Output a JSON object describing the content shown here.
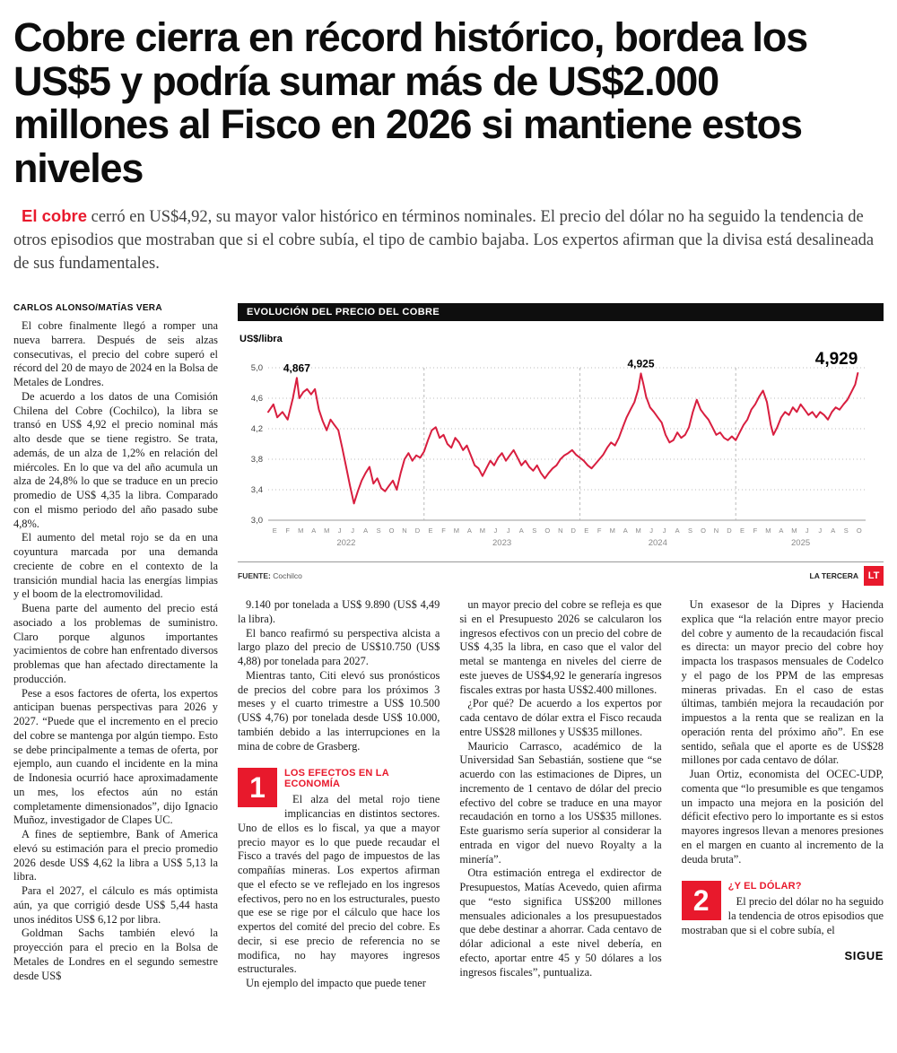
{
  "colors": {
    "accent_red": "#e8192c",
    "chart_line": "#d81e3f"
  },
  "article": {
    "headline": "Cobre cierra en récord histórico, bordea los US$5 y podría sumar más de US$2.000 millones al Fisco en 2026 si mantiene estos niveles",
    "lede_highlight": "El cobre",
    "lede_rest": " cerró en US$4,92, su mayor valor histórico en términos nominales. El precio del dólar no ha seguido la tendencia de otros episodios que mostraban que si el cobre subía, el tipo de cambio bajaba. Los expertos afirman que la divisa está desalineada de sus fundamentales.",
    "byline": "CARLOS ALONSO/MATÍAS VERA",
    "continues_label": "SIGUE",
    "columns": {
      "col1": [
        "El cobre finalmente llegó a romper una nueva barrera. Después de seis alzas consecutivas, el precio del cobre superó el récord del 20 de mayo de 2024 en la Bolsa de Metales de Londres.",
        "De acuerdo a los datos de una Comisión Chilena del Cobre (Cochilco), la libra se transó en US$ 4,92 el precio nominal más alto desde que se tiene registro. Se trata, además, de un alza de 1,2% en relación del miércoles. En lo que va del año acumula un alza de 24,8% lo que se traduce en un precio promedio de US$ 4,35 la libra. Comparado con el mismo periodo del año pasado sube 4,8%.",
        "El aumento del metal rojo se da en una coyuntura marcada por una demanda creciente de cobre en el contexto de la transición mundial hacia las energías limpias y el boom de la electromovilidad.",
        "Buena parte del aumento del precio está asociado a los problemas de suministro. Claro porque algunos importantes yacimientos de cobre han enfrentado diversos problemas que han afectado directamente la producción.",
        "Pese a esos factores de oferta, los expertos anticipan buenas perspectivas para 2026 y 2027. “Puede que el incremento en el precio del cobre se mantenga por algún tiempo. Esto se debe principalmente a temas de oferta, por ejemplo, aun cuando el incidente en la mina de Indonesia ocurrió hace aproximadamente un mes, los efectos aún no están completamente dimensionados”, dijo Ignacio Muñoz, investigador de Clapes UC.",
        "A fines de septiembre, Bank of America elevó su estimación para el precio promedio 2026 desde US$ 4,62 la libra a US$ 5,13 la libra.",
        "Para el 2027, el cálculo es más optimista aún, ya que corrigió desde US$ 5,44 hasta unos inéditos US$ 6,12 por libra.",
        "Goldman Sachs también elevó la proyección para el precio en la Bolsa de Metales de Londres en el segundo semestre desde US$"
      ],
      "col2_intro": [
        "9.140 por tonelada a US$ 9.890 (US$ 4,49 la libra).",
        "El banco reafirmó su perspectiva alcista a largo plazo del precio de US$10.750 (US$ 4,88) por tonelada para 2027.",
        "Mientras tanto, Citi elevó sus pronósticos de precios del cobre para los próximos 3 meses y el cuarto trimestre a US$ 10.500 (US$ 4,76) por tonelada desde US$ 10.000, también debido a las interrupciones en la mina de cobre de Grasberg."
      ],
      "section1": {
        "number": "1",
        "title": "LOS EFECTOS EN LA ECONOMÍA",
        "paragraphs": [
          "El alza del metal rojo tiene implicancias en distintos sectores. Uno de ellos es lo fiscal, ya que a mayor precio mayor es lo que puede recaudar el Fisco a través del pago de impuestos de las compañías mineras. Los expertos afirman que el efecto se ve reflejado en los ingresos efectivos, pero no en los estructurales, puesto que ese se rige por el cálculo que hace los expertos del comité del precio del cobre. Es decir, si ese precio de referencia no se modifica, no hay mayores ingresos estructurales.",
          "Un ejemplo del impacto que puede tener"
        ]
      },
      "col3": [
        "un mayor precio del cobre se refleja es que si en el Presupuesto 2026 se calcularon los ingresos efectivos con un precio del cobre de US$ 4,35 la libra, en caso que el valor del metal se mantenga en niveles del cierre de este jueves de US$4,92 le generaría ingresos fiscales extras por hasta US$2.400 millones.",
        "¿Por qué? De acuerdo a los expertos por cada centavo de dólar extra el Fisco recauda entre US$28 millones y US$35 millones.",
        "Mauricio Carrasco, académico de la Universidad San Sebastián, sostiene que “se acuerdo con las estimaciones de Dipres, un incremento de 1 centavo de dólar del precio efectivo del cobre se traduce en una mayor recaudación en torno a los US$35 millones. Este guarismo sería superior al considerar la entrada en vigor del nuevo Royalty a la minería”.",
        "Otra estimación entrega el exdirector de Presupuestos, Matías Acevedo, quien afirma que “esto significa US$200 millones mensuales adicionales a los presupuestados que debe destinar a ahorrar. Cada centavo de dólar adicional a este nivel debería, en efecto, aportar entre 45 y 50 dólares a los ingresos fiscales”, puntualiza."
      ],
      "col4_intro": [
        "Un exasesor de la Dipres y Hacienda explica que “la relación entre mayor precio del cobre y aumento de la recaudación fiscal es directa: un mayor precio del cobre hoy impacta los traspasos mensuales de Codelco y el pago de los PPM de las empresas mineras privadas. En el caso de estas últimas, también mejora la recaudación por impuestos a la renta que se realizan en la operación renta del próximo año”. En ese sentido, señala que el aporte es de US$28 millones por cada centavo de dólar.",
        "Juan Ortiz, economista del OCEC-UDP, comenta que “lo presumible es que tengamos un impacto una mejora en la posición del déficit efectivo pero lo importante es si estos mayores ingresos llevan a menores presiones en el margen en cuanto al incremento de la deuda bruta”."
      ],
      "section2": {
        "number": "2",
        "title": "¿Y EL DÓLAR?",
        "paragraphs": [
          "El precio del dólar no ha seguido la tendencia de otros episodios que mostraban que si el cobre subía, el"
        ]
      }
    }
  },
  "chart": {
    "header": "EVOLUCIÓN DEL PRECIO DEL COBRE",
    "unit_label": "US$/libra",
    "source_label": "FUENTE:",
    "source_value": "Cochilco",
    "credit": "LA TERCERA",
    "logo": "LT"
  },
  "chart_data": {
    "type": "line",
    "title": "EVOLUCIÓN DEL PRECIO DEL COBRE",
    "ylabel": "US$/libra",
    "ylim": [
      3.0,
      5.0
    ],
    "grid": true,
    "legend": "none",
    "yticks": [
      {
        "value": 5.0,
        "label": "5,0"
      },
      {
        "value": 4.6,
        "label": "4,6"
      },
      {
        "value": 4.2,
        "label": "4,2"
      },
      {
        "value": 3.8,
        "label": "3,8"
      },
      {
        "value": 3.4,
        "label": "3,4"
      },
      {
        "value": 3.0,
        "label": "3,0"
      }
    ],
    "month_letters": [
      "E",
      "F",
      "M",
      "A",
      "M",
      "J",
      "J",
      "A",
      "S",
      "O",
      "N",
      "D"
    ],
    "years": [
      {
        "label": "2022",
        "months": 12
      },
      {
        "label": "2023",
        "months": 12
      },
      {
        "label": "2024",
        "months": 12
      },
      {
        "label": "2025",
        "months": 10
      }
    ],
    "series": [
      {
        "name": "Precio del cobre (US$/libra)",
        "color": "#d81e3f",
        "points": [
          [
            0,
            4.42
          ],
          [
            0.4,
            4.52
          ],
          [
            0.7,
            4.35
          ],
          [
            1.1,
            4.42
          ],
          [
            1.5,
            4.32
          ],
          [
            1.9,
            4.6
          ],
          [
            2.2,
            4.867
          ],
          [
            2.4,
            4.6
          ],
          [
            2.7,
            4.68
          ],
          [
            3.0,
            4.72
          ],
          [
            3.3,
            4.65
          ],
          [
            3.6,
            4.72
          ],
          [
            3.9,
            4.45
          ],
          [
            4.2,
            4.3
          ],
          [
            4.5,
            4.18
          ],
          [
            4.8,
            4.32
          ],
          [
            5.1,
            4.25
          ],
          [
            5.4,
            4.18
          ],
          [
            5.7,
            3.95
          ],
          [
            6.0,
            3.7
          ],
          [
            6.3,
            3.45
          ],
          [
            6.6,
            3.22
          ],
          [
            6.9,
            3.38
          ],
          [
            7.2,
            3.52
          ],
          [
            7.5,
            3.62
          ],
          [
            7.8,
            3.7
          ],
          [
            8.1,
            3.48
          ],
          [
            8.4,
            3.55
          ],
          [
            8.7,
            3.42
          ],
          [
            9.0,
            3.38
          ],
          [
            9.3,
            3.45
          ],
          [
            9.6,
            3.52
          ],
          [
            9.9,
            3.4
          ],
          [
            10.2,
            3.62
          ],
          [
            10.5,
            3.8
          ],
          [
            10.8,
            3.88
          ],
          [
            11.1,
            3.78
          ],
          [
            11.4,
            3.85
          ],
          [
            11.7,
            3.82
          ],
          [
            12.0,
            3.9
          ],
          [
            12.3,
            4.05
          ],
          [
            12.6,
            4.18
          ],
          [
            12.9,
            4.22
          ],
          [
            13.2,
            4.08
          ],
          [
            13.5,
            4.12
          ],
          [
            13.8,
            4.0
          ],
          [
            14.1,
            3.95
          ],
          [
            14.4,
            4.08
          ],
          [
            14.7,
            4.02
          ],
          [
            15.0,
            3.92
          ],
          [
            15.3,
            3.98
          ],
          [
            15.6,
            3.85
          ],
          [
            15.9,
            3.72
          ],
          [
            16.2,
            3.68
          ],
          [
            16.5,
            3.58
          ],
          [
            16.8,
            3.68
          ],
          [
            17.1,
            3.78
          ],
          [
            17.4,
            3.72
          ],
          [
            17.7,
            3.82
          ],
          [
            18.0,
            3.88
          ],
          [
            18.3,
            3.78
          ],
          [
            18.6,
            3.85
          ],
          [
            18.9,
            3.92
          ],
          [
            19.2,
            3.82
          ],
          [
            19.5,
            3.72
          ],
          [
            19.8,
            3.78
          ],
          [
            20.1,
            3.7
          ],
          [
            20.4,
            3.65
          ],
          [
            20.7,
            3.72
          ],
          [
            21.0,
            3.62
          ],
          [
            21.3,
            3.55
          ],
          [
            21.6,
            3.62
          ],
          [
            21.9,
            3.68
          ],
          [
            22.2,
            3.72
          ],
          [
            22.5,
            3.8
          ],
          [
            22.8,
            3.85
          ],
          [
            23.1,
            3.88
          ],
          [
            23.4,
            3.92
          ],
          [
            23.7,
            3.86
          ],
          [
            24.0,
            3.82
          ],
          [
            24.3,
            3.78
          ],
          [
            24.6,
            3.72
          ],
          [
            24.9,
            3.68
          ],
          [
            25.2,
            3.74
          ],
          [
            25.5,
            3.8
          ],
          [
            25.8,
            3.86
          ],
          [
            26.1,
            3.95
          ],
          [
            26.4,
            4.02
          ],
          [
            26.7,
            3.98
          ],
          [
            27.0,
            4.08
          ],
          [
            27.3,
            4.22
          ],
          [
            27.6,
            4.35
          ],
          [
            27.9,
            4.45
          ],
          [
            28.2,
            4.55
          ],
          [
            28.5,
            4.72
          ],
          [
            28.7,
            4.925
          ],
          [
            28.9,
            4.78
          ],
          [
            29.1,
            4.62
          ],
          [
            29.4,
            4.48
          ],
          [
            29.7,
            4.42
          ],
          [
            30.0,
            4.35
          ],
          [
            30.3,
            4.28
          ],
          [
            30.6,
            4.12
          ],
          [
            30.9,
            4.02
          ],
          [
            31.2,
            4.05
          ],
          [
            31.5,
            4.15
          ],
          [
            31.8,
            4.08
          ],
          [
            32.1,
            4.12
          ],
          [
            32.4,
            4.22
          ],
          [
            32.7,
            4.42
          ],
          [
            33.0,
            4.58
          ],
          [
            33.3,
            4.45
          ],
          [
            33.6,
            4.38
          ],
          [
            33.9,
            4.32
          ],
          [
            34.2,
            4.22
          ],
          [
            34.5,
            4.12
          ],
          [
            34.8,
            4.15
          ],
          [
            35.1,
            4.08
          ],
          [
            35.4,
            4.05
          ],
          [
            35.7,
            4.1
          ],
          [
            36.0,
            4.05
          ],
          [
            36.3,
            4.15
          ],
          [
            36.6,
            4.25
          ],
          [
            36.9,
            4.32
          ],
          [
            37.2,
            4.45
          ],
          [
            37.5,
            4.52
          ],
          [
            37.8,
            4.62
          ],
          [
            38.1,
            4.7
          ],
          [
            38.4,
            4.55
          ],
          [
            38.7,
            4.25
          ],
          [
            38.9,
            4.12
          ],
          [
            39.2,
            4.22
          ],
          [
            39.5,
            4.35
          ],
          [
            39.8,
            4.42
          ],
          [
            40.1,
            4.38
          ],
          [
            40.4,
            4.48
          ],
          [
            40.7,
            4.42
          ],
          [
            41.0,
            4.52
          ],
          [
            41.3,
            4.45
          ],
          [
            41.6,
            4.38
          ],
          [
            41.9,
            4.42
          ],
          [
            42.2,
            4.35
          ],
          [
            42.5,
            4.42
          ],
          [
            42.8,
            4.38
          ],
          [
            43.1,
            4.32
          ],
          [
            43.4,
            4.42
          ],
          [
            43.7,
            4.48
          ],
          [
            44.0,
            4.45
          ],
          [
            44.3,
            4.52
          ],
          [
            44.6,
            4.58
          ],
          [
            44.9,
            4.68
          ],
          [
            45.2,
            4.78
          ],
          [
            45.4,
            4.929
          ]
        ]
      }
    ],
    "annotations": [
      {
        "x": 2.2,
        "y": 4.867,
        "label": "4,867",
        "size": "small",
        "anchor": "middle"
      },
      {
        "x": 28.7,
        "y": 4.925,
        "label": "4,925",
        "size": "small",
        "anchor": "middle"
      },
      {
        "x": 45.4,
        "y": 4.929,
        "label": "4,929",
        "size": "large",
        "anchor": "end"
      }
    ]
  }
}
